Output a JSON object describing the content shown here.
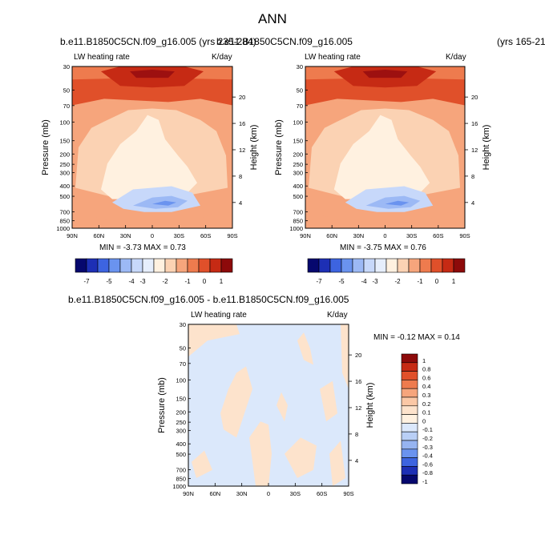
{
  "page": {
    "title": "ANN"
  },
  "chart_data": [
    {
      "type": "heatmap",
      "case_title": "b.e11.B1850C5CN.f09_g16.005 (yrs 235-284)",
      "variable_label": "LW heating rate",
      "units_label": "K/day",
      "ylabel": "Pressure (mb)",
      "ylabel_right": "Height (km)",
      "pressure_ticks": [
        "30",
        "50",
        "70",
        "100",
        "150",
        "200",
        "250",
        "300",
        "400",
        "500",
        "700",
        "850",
        "1000"
      ],
      "height_ticks": [
        "20",
        "16",
        "12",
        "8",
        "4"
      ],
      "x_ticks": [
        "90N",
        "60N",
        "30N",
        "0",
        "30S",
        "60S",
        "90S"
      ],
      "stats": "MIN = -3.73   MAX =  0.73",
      "colorbar_labels": [
        "-7",
        "-5",
        "-4",
        "-3",
        "-2",
        "-1",
        "0",
        "1"
      ],
      "colors": [
        "#06086e",
        "#1d2fb5",
        "#3d64e0",
        "#6a93ef",
        "#9cb9f5",
        "#c7d8fa",
        "#e6eefc",
        "#fff1e0",
        "#fbd2b3",
        "#f6a57c",
        "#ee7b4e",
        "#e0502a",
        "#c62a14",
        "#8d0a0a"
      ]
    },
    {
      "type": "heatmap",
      "case_title": "b.e11.B1850C5CN.f09_g16.005",
      "case_years": "(yrs 165-21",
      "variable_label": "LW heating rate",
      "units_label": "K/day",
      "ylabel": "Pressure (mb)",
      "ylabel_right": "Height (km)",
      "pressure_ticks": [
        "30",
        "50",
        "70",
        "100",
        "150",
        "200",
        "250",
        "300",
        "400",
        "500",
        "700",
        "850",
        "1000"
      ],
      "height_ticks": [
        "20",
        "16",
        "12",
        "8",
        "4"
      ],
      "x_ticks": [
        "90N",
        "60N",
        "30N",
        "0",
        "30S",
        "60S",
        "90S"
      ],
      "stats": "MIN = -3.75   MAX =  0.76",
      "colorbar_labels": [
        "-7",
        "-5",
        "-4",
        "-3",
        "-2",
        "-1",
        "0",
        "1"
      ]
    },
    {
      "type": "heatmap",
      "case_title": "b.e11.B1850C5CN.f09_g16.005 - b.e11.B1850C5CN.f09_g16.005",
      "variable_label": "LW heating rate",
      "units_label": "K/day",
      "ylabel": "Pressure (mb)",
      "ylabel_right": "Height (km)",
      "pressure_ticks": [
        "30",
        "50",
        "70",
        "100",
        "150",
        "200",
        "250",
        "300",
        "400",
        "500",
        "700",
        "850",
        "1000"
      ],
      "height_ticks": [
        "20",
        "16",
        "12",
        "8",
        "4"
      ],
      "x_ticks": [
        "90N",
        "60N",
        "30N",
        "0",
        "30S",
        "60S",
        "90S"
      ],
      "stats": "MIN = -0.12   MAX =  0.14",
      "colorbar_labels": [
        "1",
        "0.8",
        "0.6",
        "0.4",
        "0.3",
        "0.2",
        "0.1",
        "0",
        "-0.1",
        "-0.2",
        "-0.3",
        "-0.4",
        "-0.6",
        "-0.8",
        "-1"
      ],
      "colors": [
        "#8d0a0a",
        "#c62a14",
        "#e0502a",
        "#ee7b4e",
        "#f6a57c",
        "#fbc8a6",
        "#fde3cc",
        "#fff1e0",
        "#dbe8fb",
        "#b9cff6",
        "#96b4f1",
        "#6a93ef",
        "#3d64e0",
        "#1d2fb5",
        "#06086e"
      ]
    }
  ]
}
